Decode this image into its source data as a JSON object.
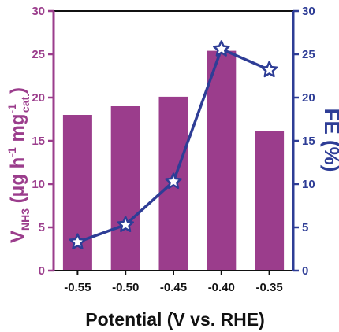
{
  "chart_data": {
    "type": "bar+line",
    "categories": [
      "-0.55",
      "-0.50",
      "-0.45",
      "-0.40",
      "-0.35"
    ],
    "bars": {
      "axis": "left",
      "values": [
        18.0,
        19.0,
        20.1,
        25.4,
        16.1
      ],
      "color": "#9b3d8c"
    },
    "line": {
      "axis": "right",
      "values": [
        3.3,
        5.3,
        10.3,
        25.6,
        23.2
      ],
      "color": "#2e3d96",
      "marker": "star"
    },
    "xlabel": "Potential (V vs. RHE)",
    "ylabel_left": {
      "main": "V",
      "sub1": "NH3",
      "mid": "(μg h",
      "sup": "-1",
      "mid2": "mg",
      "sup2": "-1",
      "sub2": "cat.",
      "end": ")"
    },
    "ylabel_right": "FE (%)",
    "ylim_left": [
      0,
      30
    ],
    "ylim_right": [
      0,
      30
    ],
    "yticks_left": [
      "0",
      "5",
      "10",
      "15",
      "20",
      "25",
      "30"
    ],
    "yticks_right": [
      "0",
      "5",
      "10",
      "15",
      "20",
      "25",
      "30"
    ],
    "left_axis_color": "#9b3d8c",
    "right_axis_color": "#2e3d96",
    "grid": false
  }
}
